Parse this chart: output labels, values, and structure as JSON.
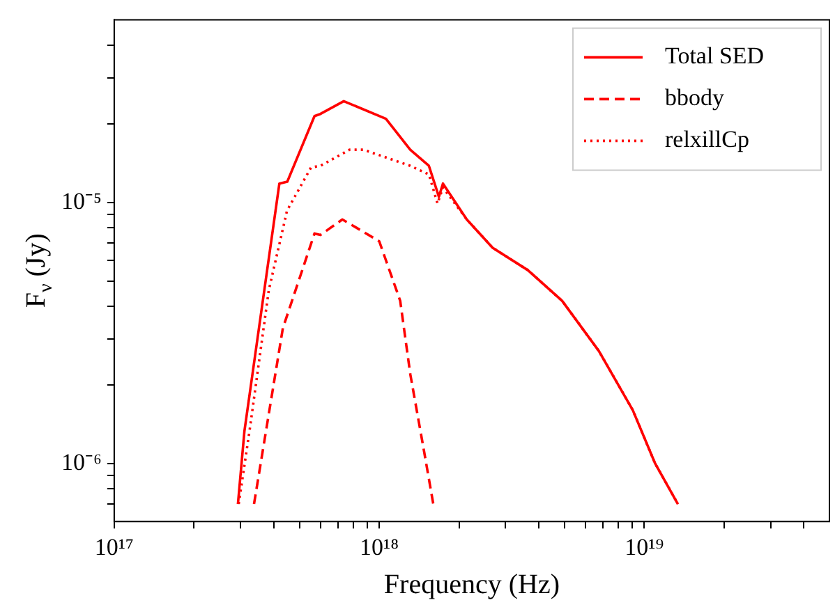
{
  "chart_data": {
    "type": "line",
    "xlabel": "Frequency (Hz)",
    "ylabel": "F$_{ν}$ (Jy)",
    "log": "xy",
    "grid": false,
    "legend": "top right",
    "marker": "none",
    "xlim": [
      1e+17,
      5e+19
    ],
    "ylim": [
      6e-07,
      5e-05
    ],
    "xticks": [
      {
        "value": 1e+17,
        "label": "10¹⁷"
      },
      {
        "value": 2e+17,
        "label": null
      },
      {
        "value": 3e+17,
        "label": null
      },
      {
        "value": 4e+17,
        "label": null
      },
      {
        "value": 5e+17,
        "label": null
      },
      {
        "value": 6e+17,
        "label": null
      },
      {
        "value": 7e+17,
        "label": null
      },
      {
        "value": 8e+17,
        "label": null
      },
      {
        "value": 9e+17,
        "label": null
      },
      {
        "value": 1e+18,
        "label": "10¹⁸"
      },
      {
        "value": 2e+18,
        "label": null
      },
      {
        "value": 3e+18,
        "label": null
      },
      {
        "value": 4e+18,
        "label": null
      },
      {
        "value": 5e+18,
        "label": null
      },
      {
        "value": 6e+18,
        "label": null
      },
      {
        "value": 7e+18,
        "label": null
      },
      {
        "value": 8e+18,
        "label": null
      },
      {
        "value": 9e+18,
        "label": null
      },
      {
        "value": 1e+19,
        "label": "10¹⁹"
      },
      {
        "value": 2e+19,
        "label": null
      },
      {
        "value": 3e+19,
        "label": null
      },
      {
        "value": 4e+19,
        "label": null
      }
    ],
    "yticks": [
      {
        "value": 7e-07,
        "label": null
      },
      {
        "value": 8e-07,
        "label": null
      },
      {
        "value": 9e-07,
        "label": null
      },
      {
        "value": 1e-06,
        "label": "10⁻⁶"
      },
      {
        "value": 2e-06,
        "label": null
      },
      {
        "value": 3e-06,
        "label": null
      },
      {
        "value": 4e-06,
        "label": null
      },
      {
        "value": 5e-06,
        "label": null
      },
      {
        "value": 6e-06,
        "label": null
      },
      {
        "value": 7e-06,
        "label": null
      },
      {
        "value": 8e-06,
        "label": null
      },
      {
        "value": 9e-06,
        "label": null
      },
      {
        "value": 1e-05,
        "label": "10⁻⁵"
      },
      {
        "value": 2e-05,
        "label": null
      },
      {
        "value": 3e-05,
        "label": null
      },
      {
        "value": 4e-05,
        "label": null
      }
    ],
    "series": [
      {
        "name": "Total SED",
        "color": "#ff0000",
        "line_style": "solid",
        "x": [
          2.93e+17,
          3.1e+17,
          4.2e+17,
          4.5e+17,
          5.7e+17,
          6e+17,
          7.35e+17,
          1.06e+18,
          1.31e+18,
          1.54e+18,
          1.68e+18,
          1.74e+18,
          2.14e+18,
          2.68e+18,
          3.64e+18,
          4.9e+18,
          6.74e+18,
          9.06e+18,
          1.1e+19,
          1.34e+19
        ],
        "values": [
          7e-07,
          1.33e-06,
          1.18e-05,
          1.2e-05,
          2.14e-05,
          2.18e-05,
          2.44e-05,
          2.09e-05,
          1.59e-05,
          1.38e-05,
          1.05e-05,
          1.18e-05,
          8.6e-06,
          6.7e-06,
          5.5e-06,
          4.2e-06,
          2.7e-06,
          1.6e-06,
          1e-06,
          7e-07
        ]
      },
      {
        "name": "bbody",
        "color": "#ff0000",
        "line_style": "dashed",
        "x": [
          3.37e+17,
          4.33e+17,
          5.7e+17,
          6e+17,
          7.26e+17,
          1e+18,
          1.2e+18,
          1.31e+18,
          1.48e+18,
          1.6e+18
        ],
        "values": [
          7e-07,
          3.3e-06,
          7.6e-06,
          7.5e-06,
          8.6e-06,
          7.1e-06,
          4.2e-06,
          2.2e-06,
          1.1e-06,
          7e-07
        ]
      },
      {
        "name": "relxillCp",
        "color": "#ff0000",
        "line_style": "dotted",
        "x": [
          2.95e+17,
          3.26e+17,
          3.83e+17,
          4.49e+17,
          5.53e+17,
          6e+17,
          7.73e+17,
          8.73e+17,
          1.31e+18,
          1.54e+18,
          1.66e+18,
          1.74e+18,
          2.14e+18,
          2.68e+18,
          3.64e+18,
          4.9e+18,
          6.74e+18,
          9.06e+18,
          1.1e+19,
          1.34e+19
        ],
        "values": [
          7e-07,
          1.39e-06,
          4.6e-06,
          9.3e-06,
          1.36e-05,
          1.38e-05,
          1.59e-05,
          1.59e-05,
          1.38e-05,
          1.28e-05,
          9.9e-06,
          1.14e-05,
          8.6e-06,
          6.7e-06,
          5.5e-06,
          4.2e-06,
          2.7e-06,
          1.6e-06,
          1e-06,
          7e-07
        ]
      }
    ]
  }
}
